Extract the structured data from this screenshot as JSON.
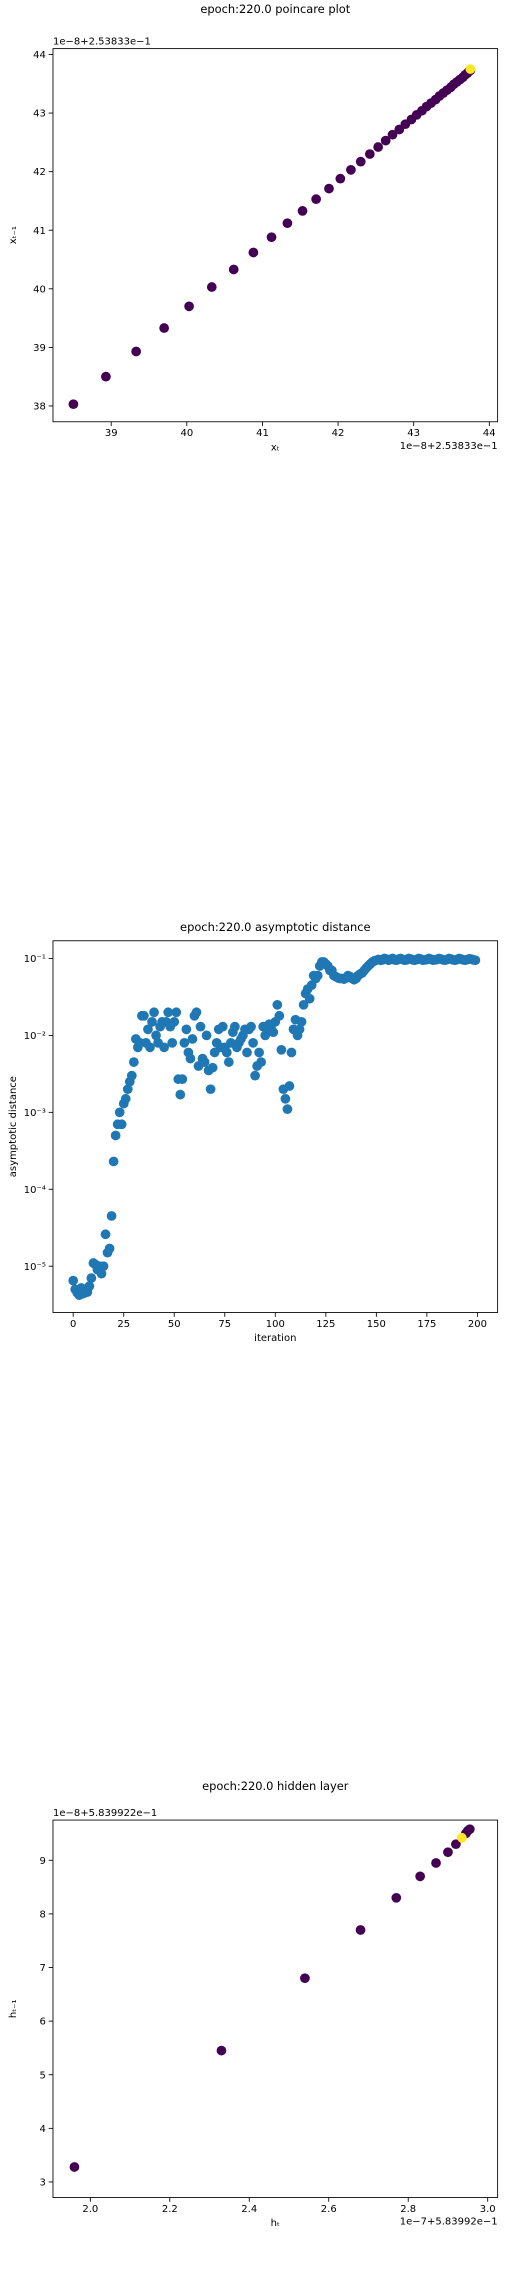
{
  "chart_data": [
    {
      "type": "scatter",
      "title": "epoch:220.0 poincare plot",
      "xlabel": "xₜ",
      "ylabel": "xₜ₋₁",
      "x_offset": "1e−8+2.53833e−1",
      "y_offset": "1e−8+2.53833e−1",
      "xlim": [
        38.23,
        44.11
      ],
      "ylim": [
        37.73,
        44.1
      ],
      "xticks": [
        39,
        40,
        41,
        42,
        43,
        44
      ],
      "yticks": [
        38,
        39,
        40,
        41,
        42,
        43,
        44
      ],
      "series": [
        {
          "color": "#440154",
          "x": [
            38.5,
            38.93,
            39.33,
            39.7,
            40.03,
            40.33,
            40.62,
            40.88,
            41.12,
            41.33,
            41.53,
            41.71,
            41.88,
            42.03,
            42.17,
            42.3,
            42.42,
            42.53,
            42.63,
            42.72,
            42.81,
            42.89,
            42.97,
            43.04,
            43.11,
            43.17,
            43.23,
            43.29,
            43.34,
            43.39,
            43.44,
            43.49,
            43.53,
            43.57,
            43.61,
            43.65,
            43.68,
            43.71,
            43.73,
            43.75
          ],
          "y": [
            38.03,
            38.5,
            38.93,
            39.33,
            39.7,
            40.03,
            40.33,
            40.62,
            40.88,
            41.12,
            41.33,
            41.53,
            41.71,
            41.88,
            42.03,
            42.17,
            42.3,
            42.42,
            42.53,
            42.63,
            42.72,
            42.81,
            42.89,
            42.97,
            43.04,
            43.11,
            43.17,
            43.23,
            43.29,
            43.34,
            43.39,
            43.44,
            43.49,
            43.53,
            43.57,
            43.61,
            43.65,
            43.68,
            43.71,
            43.73
          ]
        },
        {
          "color": "#fde725",
          "x": [
            43.75
          ],
          "y": [
            43.75
          ]
        }
      ]
    },
    {
      "type": "scatter",
      "title": "epoch:220.0 asymptotic distance",
      "xlabel": "iteration",
      "ylabel": "asymptotic distance",
      "ylog": true,
      "xlim": [
        -10,
        210
      ],
      "ylim": [
        2.5e-06,
        0.17
      ],
      "xticks": [
        0,
        25,
        50,
        75,
        100,
        125,
        150,
        175,
        200
      ],
      "yticks": [
        {
          "value": 1e-05,
          "label": "10⁻⁵"
        },
        {
          "value": 0.0001,
          "label": "10⁻⁴"
        },
        {
          "value": 0.001,
          "label": "10⁻³"
        },
        {
          "value": 0.01,
          "label": "10⁻²"
        },
        {
          "value": 0.1,
          "label": "10⁻¹"
        }
      ],
      "series": [
        {
          "color": "#1f77b4",
          "x": [
            0,
            1,
            2,
            3,
            4,
            5,
            6,
            7,
            8,
            9,
            10,
            11,
            12,
            13,
            14,
            15,
            16,
            17,
            18,
            19,
            20,
            21,
            22,
            23,
            24,
            25,
            26,
            27,
            28,
            29,
            30,
            31,
            32,
            33,
            34,
            35,
            36,
            37,
            38,
            39,
            40,
            41,
            42,
            43,
            44,
            45,
            46,
            47,
            48,
            49,
            50,
            51,
            52,
            53,
            54,
            55,
            56,
            57,
            58,
            59,
            60,
            61,
            62,
            63,
            64,
            65,
            66,
            67,
            68,
            69,
            70,
            71,
            72,
            73,
            74,
            75,
            76,
            77,
            78,
            79,
            80,
            81,
            82,
            83,
            84,
            85,
            86,
            87,
            88,
            89,
            90,
            91,
            92,
            93,
            94,
            95,
            96,
            97,
            98,
            99,
            100,
            101,
            102,
            103,
            104,
            105,
            106,
            107,
            108,
            109,
            110,
            111,
            112,
            113,
            114,
            115,
            116,
            117,
            118,
            119,
            120,
            121,
            122,
            123,
            124,
            125,
            126,
            127,
            128,
            129,
            130,
            131,
            132,
            133,
            134,
            135,
            136,
            137,
            138,
            139,
            140,
            141,
            142,
            143,
            144,
            145,
            146,
            147,
            148,
            149,
            150,
            151,
            152,
            153,
            154,
            155,
            156,
            157,
            158,
            159,
            160,
            161,
            162,
            163,
            164,
            165,
            166,
            167,
            168,
            169,
            170,
            171,
            172,
            173,
            174,
            175,
            176,
            177,
            178,
            179,
            180,
            181,
            182,
            183,
            184,
            185,
            186,
            187,
            188,
            189,
            190,
            191,
            192,
            193,
            194,
            195,
            196,
            197,
            198,
            199
          ],
          "y": [
            6.5e-06,
            5e-06,
            4.5e-06,
            4.2e-06,
            5.2e-06,
            4.4e-06,
            5e-06,
            4.6e-06,
            5.5e-06,
            7e-06,
            1.1e-05,
            1.05e-05,
            9e-06,
            1e-05,
            8e-06,
            1e-05,
            2.6e-05,
            1.5e-05,
            1.7e-05,
            4.5e-05,
            0.00023,
            0.0005,
            0.0007,
            0.001,
            0.0007,
            0.0013,
            0.0015,
            0.002,
            0.0025,
            0.003,
            0.0045,
            0.009,
            0.007,
            0.008,
            0.018,
            0.018,
            0.008,
            0.012,
            0.007,
            0.015,
            0.02,
            0.01,
            0.008,
            0.013,
            0.015,
            0.007,
            0.015,
            0.02,
            0.013,
            0.008,
            0.015,
            0.02,
            0.0027,
            0.0017,
            0.0027,
            0.008,
            0.012,
            0.006,
            0.005,
            0.009,
            0.018,
            0.02,
            0.004,
            0.013,
            0.005,
            0.0045,
            0.01,
            0.0035,
            0.002,
            0.0038,
            0.006,
            0.008,
            0.012,
            0.007,
            0.013,
            0.007,
            0.006,
            0.0045,
            0.008,
            0.011,
            0.013,
            0.007,
            0.008,
            0.009,
            0.01,
            0.012,
            0.006,
            0.012,
            0.013,
            0.008,
            0.003,
            0.004,
            0.006,
            0.0045,
            0.013,
            0.01,
            0.012,
            0.014,
            0.012,
            0.011,
            0.015,
            0.025,
            0.018,
            0.0065,
            0.002,
            0.0015,
            0.0011,
            0.0022,
            0.006,
            0.012,
            0.016,
            0.01,
            0.012,
            0.015,
            0.025,
            0.035,
            0.04,
            0.03,
            0.045,
            0.06,
            0.055,
            0.06,
            0.08,
            0.09,
            0.09,
            0.085,
            0.08,
            0.07,
            0.07,
            0.06,
            0.058,
            0.056,
            0.055,
            0.055,
            0.054,
            0.056,
            0.06,
            0.058,
            0.055,
            0.053,
            0.055,
            0.06,
            0.063,
            0.065,
            0.07,
            0.075,
            0.08,
            0.085,
            0.09,
            0.093,
            0.095,
            0.097,
            0.095,
            0.096,
            0.1,
            0.098,
            0.095,
            0.097,
            0.1,
            0.096,
            0.095,
            0.098,
            0.1,
            0.097,
            0.095,
            0.096,
            0.1,
            0.098,
            0.096,
            0.095,
            0.097,
            0.1,
            0.098,
            0.095,
            0.096,
            0.097,
            0.1,
            0.098,
            0.095,
            0.096,
            0.097,
            0.1,
            0.098,
            0.096,
            0.095,
            0.097,
            0.1,
            0.098,
            0.096,
            0.095,
            0.097,
            0.1,
            0.098,
            0.096,
            0.095,
            0.097,
            0.099,
            0.098,
            0.096,
            0.095
          ]
        }
      ]
    },
    {
      "type": "scatter",
      "title": "epoch:220.0 hidden layer",
      "xlabel": "hₜ",
      "ylabel": "hₜ₋₁",
      "x_offset": "1e−7+5.83992e−1",
      "y_offset": "1e−8+5.839922e−1",
      "xlim": [
        1.906,
        3.025
      ],
      "ylim": [
        2.71,
        9.75
      ],
      "xticks": [
        {
          "value": 2,
          "label": "2.0"
        },
        2.2,
        2.4,
        2.6,
        2.8,
        {
          "value": 3,
          "label": "3.0"
        }
      ],
      "yticks": [
        3,
        4,
        5,
        6,
        7,
        8,
        9
      ],
      "series": [
        {
          "color": "#440154",
          "x": [
            1.96,
            2.33,
            2.54,
            2.68,
            2.77,
            2.83,
            2.87,
            2.9,
            2.92,
            2.945,
            2.95,
            2.955
          ],
          "y": [
            3.28,
            5.45,
            6.8,
            7.7,
            8.3,
            8.7,
            8.95,
            9.15,
            9.3,
            9.5,
            9.55,
            9.58
          ]
        },
        {
          "color": "#fde725",
          "x": [
            2.935
          ],
          "y": [
            9.42
          ]
        }
      ]
    }
  ]
}
